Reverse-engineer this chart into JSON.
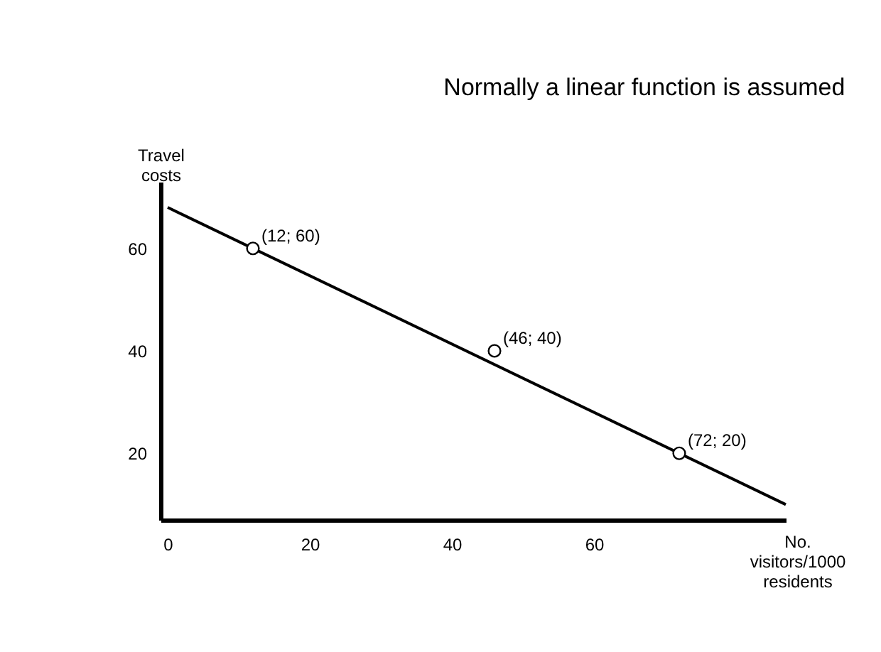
{
  "chart_data": {
    "type": "scatter",
    "title": "Normally a linear function is assumed",
    "xlabel": "No. visitors/1000 residents",
    "ylabel": "Travel costs",
    "xlim": [
      -1,
      87
    ],
    "xticks": [
      0,
      20,
      40,
      60
    ],
    "ylim": [
      7,
      73
    ],
    "yticks": [
      20,
      40,
      60
    ],
    "grid": false,
    "marker": "circle",
    "series": [
      {
        "type": "line",
        "marker": "none",
        "color": "#000000",
        "x": [
          0,
          87
        ],
        "values": [
          68,
          10
        ]
      },
      {
        "color": "#000000",
        "x": [
          12,
          46,
          72
        ],
        "values": [
          60,
          40,
          20
        ],
        "value_labels": [
          "(12; 60)",
          "(46; 40)",
          "(72; 20)"
        ]
      }
    ]
  }
}
